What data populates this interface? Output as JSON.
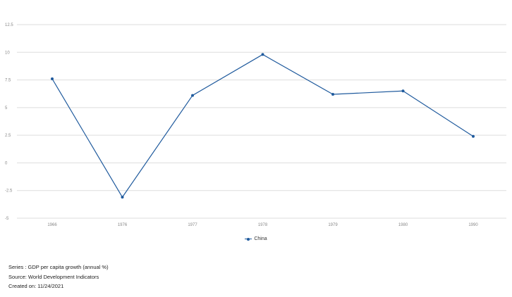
{
  "chart_data": {
    "type": "line",
    "categories": [
      "1966",
      "1976",
      "1977",
      "1978",
      "1979",
      "1980",
      "1990"
    ],
    "series": [
      {
        "name": "China",
        "values": [
          7.6,
          -3.1,
          6.1,
          9.8,
          6.2,
          6.5,
          2.4
        ]
      }
    ],
    "y_ticks": [
      "12.5",
      "10",
      "7.5",
      "5",
      "2.5",
      "0",
      "-2.5",
      "-5"
    ],
    "ylim": [
      -5,
      12.5
    ],
    "grid": true,
    "legend_position": "bottom-center",
    "colors": {
      "series": "#1f5a9d",
      "grid": "#dddddd",
      "axis_text": "#888888"
    }
  },
  "legend": {
    "label": "China"
  },
  "footer": {
    "series": "Series : GDP per capita growth (annual %)",
    "source": "Source: World Development Indicators",
    "created": "Created on: 11/24/2021"
  }
}
